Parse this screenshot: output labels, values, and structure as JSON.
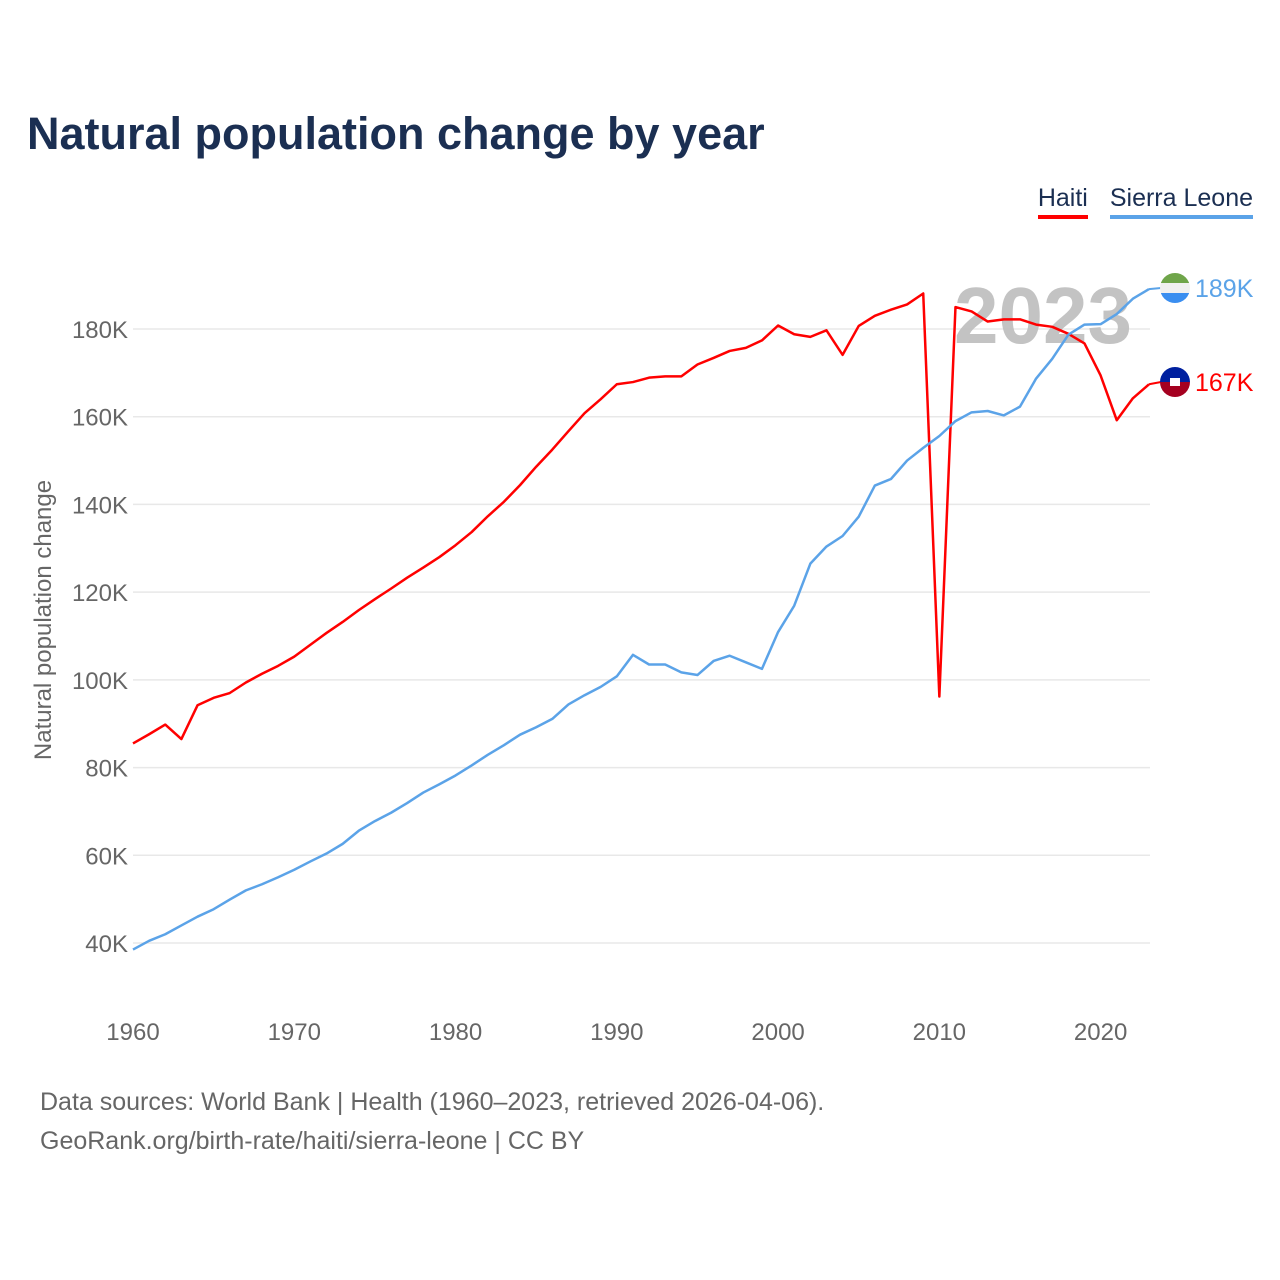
{
  "title": "Natural population change by year",
  "footer": {
    "line1": "Data sources: World Bank | Health (1960–2023, retrieved 2026-04-06).",
    "line2": "GeoRank.org/birth-rate/haiti/sierra-leone | CC BY"
  },
  "chart_data": {
    "type": "line",
    "title": "Natural population change by year",
    "xlabel": "",
    "ylabel": "Natural population change",
    "xlim": [
      1960,
      2023
    ],
    "ylim": [
      30000,
      195000
    ],
    "grid": true,
    "legend_position": "top-right",
    "year_watermark": "2023",
    "x_ticks": [
      1960,
      1970,
      1980,
      1990,
      2000,
      2010,
      2020
    ],
    "x_tick_labels": [
      "1960",
      "1970",
      "1980",
      "1990",
      "2000",
      "2010",
      "2020"
    ],
    "y_ticks": [
      40000,
      60000,
      80000,
      100000,
      120000,
      140000,
      160000,
      180000
    ],
    "y_tick_labels": [
      "40K",
      "60K",
      "80K",
      "100K",
      "120K",
      "140K",
      "160K",
      "180K"
    ],
    "x": [
      1960,
      1961,
      1962,
      1963,
      1964,
      1965,
      1966,
      1967,
      1968,
      1969,
      1970,
      1971,
      1972,
      1973,
      1974,
      1975,
      1976,
      1977,
      1978,
      1979,
      1980,
      1981,
      1982,
      1983,
      1984,
      1985,
      1986,
      1987,
      1988,
      1989,
      1990,
      1991,
      1992,
      1993,
      1994,
      1995,
      1996,
      1997,
      1998,
      1999,
      2000,
      2001,
      2002,
      2003,
      2004,
      2005,
      2006,
      2007,
      2008,
      2009,
      2010,
      2011,
      2012,
      2013,
      2014,
      2015,
      2016,
      2017,
      2018,
      2019,
      2020,
      2021,
      2022,
      2023
    ],
    "series": [
      {
        "name": "Haiti",
        "color": "#ff0000",
        "end_label": "167K",
        "flag": "haiti-flag",
        "values": [
          85500,
          87600,
          89800,
          86500,
          94200,
          95900,
          97000,
          99400,
          101400,
          103200,
          105300,
          108000,
          110700,
          113200,
          115900,
          118400,
          120800,
          123300,
          125600,
          128000,
          130700,
          133700,
          137300,
          140600,
          144400,
          148600,
          152500,
          156700,
          160800,
          164000,
          167400,
          167900,
          168900,
          169200,
          169200,
          171900,
          173400,
          175000,
          175700,
          177400,
          180800,
          178800,
          178200,
          179700,
          174100,
          180700,
          183000,
          184400,
          185600,
          188100,
          96200,
          185000,
          184000,
          181700,
          182200,
          182200,
          181000,
          180500,
          178900,
          176700,
          169400,
          159200,
          164200,
          167400
        ]
      },
      {
        "name": "Sierra Leone",
        "color": "#5ba3e8",
        "end_label": "189K",
        "flag": "sierra-leone-flag",
        "values": [
          38500,
          40500,
          42000,
          44000,
          46000,
          47700,
          49900,
          52000,
          53400,
          55000,
          56700,
          58600,
          60400,
          62600,
          65600,
          67800,
          69700,
          71900,
          74300,
          76200,
          78200,
          80500,
          82900,
          85100,
          87500,
          89200,
          91100,
          94400,
          96500,
          98400,
          100800,
          105700,
          103500,
          103500,
          101700,
          101100,
          104300,
          105500,
          104000,
          102500,
          110900,
          116900,
          126500,
          130400,
          132800,
          137200,
          144300,
          145800,
          150000,
          152900,
          155600,
          159000,
          161000,
          161300,
          160300,
          162300,
          168700,
          173200,
          178700,
          181000,
          181100,
          183400,
          186900,
          189100
        ]
      }
    ]
  }
}
